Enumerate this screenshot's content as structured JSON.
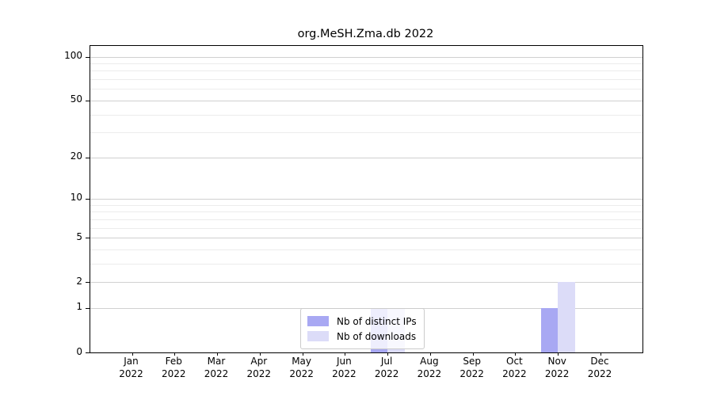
{
  "title": "org.MeSH.Zma.db 2022",
  "chart_data": {
    "type": "bar",
    "title": "org.MeSH.Zma.db 2022",
    "categories": [
      "Jan 2022",
      "Feb 2022",
      "Mar 2022",
      "Apr 2022",
      "May 2022",
      "Jun 2022",
      "Jul 2022",
      "Aug 2022",
      "Sep 2022",
      "Oct 2022",
      "Nov 2022",
      "Dec 2022"
    ],
    "series": [
      {
        "name": "Nb of distinct IPs",
        "color": "#a8a8f3",
        "values": [
          0,
          0,
          0,
          0,
          0,
          0,
          1,
          0,
          0,
          0,
          1,
          0
        ]
      },
      {
        "name": "Nb of downloads",
        "color": "#dcdcf8",
        "values": [
          0,
          0,
          0,
          0,
          0,
          0,
          1,
          0,
          0,
          0,
          2,
          0
        ]
      }
    ],
    "xlabel": "",
    "ylabel": "",
    "yscale": "log1p",
    "ylim": [
      0,
      118
    ],
    "y_major_ticks": [
      0,
      1,
      2,
      5,
      10,
      20,
      50,
      100
    ],
    "y_minor_ticks": [
      3,
      4,
      6,
      7,
      8,
      9,
      30,
      40,
      60,
      70,
      80,
      90
    ],
    "grid": "horizontal-on",
    "legend_position": "lower-center-inside"
  },
  "legend": {
    "items": [
      {
        "label": "Nb of distinct IPs"
      },
      {
        "label": "Nb of downloads"
      }
    ]
  },
  "colors": {
    "grid_major": "#d0d0d0",
    "grid_minor": "#ececec",
    "spine": "#000000",
    "background": "#ffffff"
  }
}
